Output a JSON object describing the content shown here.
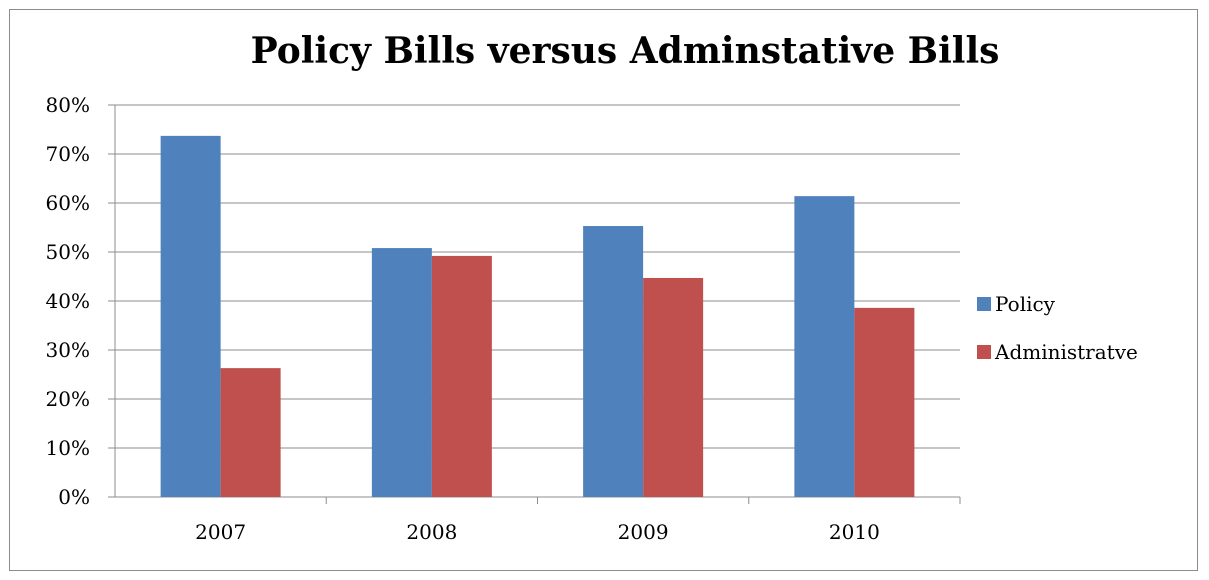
{
  "chart_data": {
    "type": "bar",
    "title": "Policy Bills versus Adminstative Bills",
    "xlabel": "",
    "ylabel": "",
    "categories": [
      "2007",
      "2008",
      "2009",
      "2010"
    ],
    "series": [
      {
        "name": "Policy",
        "values": [
          73.7,
          50.8,
          55.3,
          61.4
        ],
        "color": "#4f81bd"
      },
      {
        "name": "Administratve",
        "values": [
          26.3,
          49.2,
          44.7,
          38.6
        ],
        "color": "#c0504d"
      }
    ],
    "ylim": [
      0,
      80
    ],
    "yticks": [
      0,
      10,
      20,
      30,
      40,
      50,
      60,
      70,
      80
    ],
    "ytick_labels": [
      "0%",
      "10%",
      "20%",
      "30%",
      "40%",
      "50%",
      "60%",
      "70%",
      "80%"
    ],
    "grid": true,
    "legend_position": "right"
  }
}
